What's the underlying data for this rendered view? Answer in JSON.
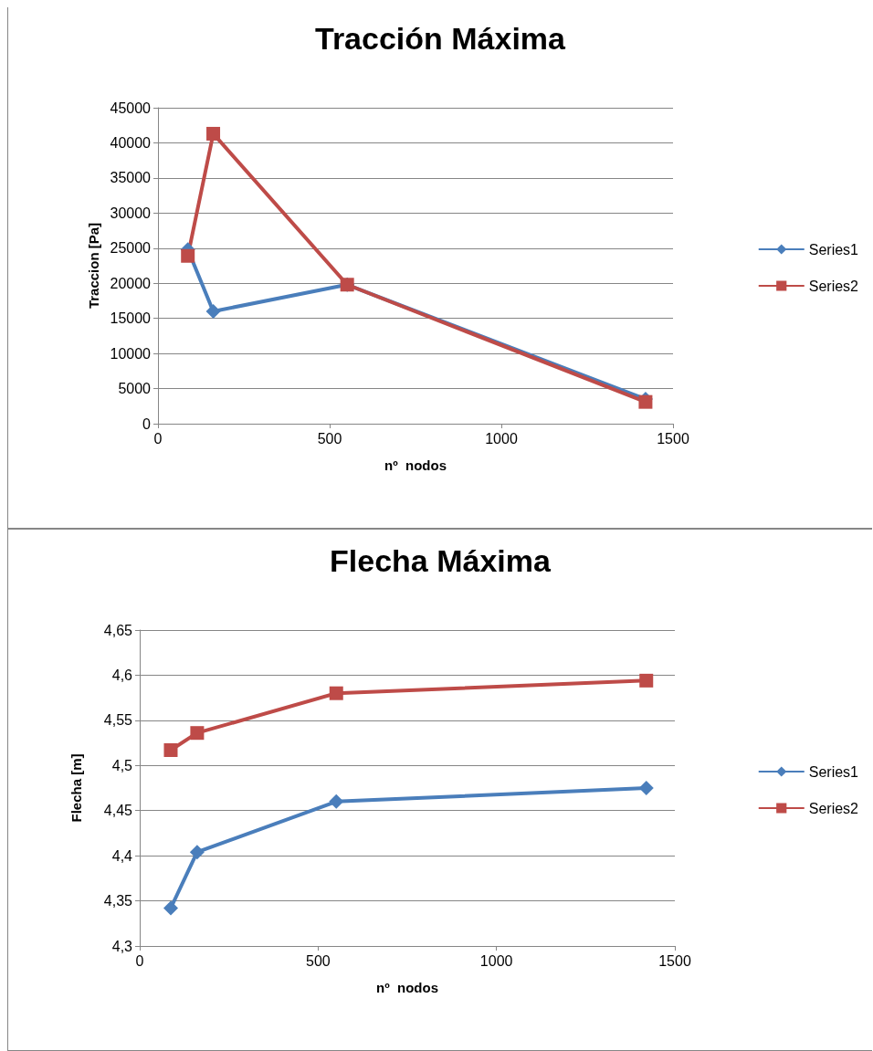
{
  "chart_data": [
    {
      "type": "line",
      "title": "Tracción Máxima",
      "xlabel": "nº  nodos",
      "ylabel": "Traccion [Pa]",
      "x": [
        87,
        161,
        551,
        1420
      ],
      "series": [
        {
          "name": "Series1",
          "color": "#4a7ebb",
          "marker": "diamond",
          "values": [
            24800,
            16000,
            19800,
            3500
          ]
        },
        {
          "name": "Series2",
          "color": "#be4b48",
          "marker": "square",
          "values": [
            23900,
            41300,
            19800,
            3100
          ]
        }
      ],
      "xlim": [
        0,
        1500
      ],
      "xticks": [
        0,
        500,
        1000,
        1500
      ],
      "ylim": [
        0,
        45000
      ],
      "yticks": [
        0,
        5000,
        10000,
        15000,
        20000,
        25000,
        30000,
        35000,
        40000,
        45000
      ],
      "grid": "y",
      "legend": "right"
    },
    {
      "type": "line",
      "title": "Flecha Máxima",
      "xlabel": "nº  nodos",
      "ylabel": "Flecha [m]",
      "x": [
        87,
        161,
        551,
        1420
      ],
      "series": [
        {
          "name": "Series1",
          "color": "#4a7ebb",
          "marker": "diamond",
          "values": [
            4.342,
            4.404,
            4.46,
            4.475
          ]
        },
        {
          "name": "Series2",
          "color": "#be4b48",
          "marker": "square",
          "values": [
            4.517,
            4.536,
            4.58,
            4.594
          ]
        }
      ],
      "xlim": [
        0,
        1500
      ],
      "xticks": [
        0,
        500,
        1000,
        1500
      ],
      "ylim": [
        4.3,
        4.65
      ],
      "yticks": [
        {
          "value": 4.3,
          "label": "4,3"
        },
        {
          "value": 4.35,
          "label": "4,35"
        },
        {
          "value": 4.4,
          "label": "4,4"
        },
        {
          "value": 4.45,
          "label": "4,45"
        },
        {
          "value": 4.5,
          "label": "4,5"
        },
        {
          "value": 4.55,
          "label": "4,55"
        },
        {
          "value": 4.6,
          "label": "4,6"
        },
        {
          "value": 4.65,
          "label": "4,65"
        }
      ],
      "grid": "y",
      "legend": "right"
    }
  ]
}
